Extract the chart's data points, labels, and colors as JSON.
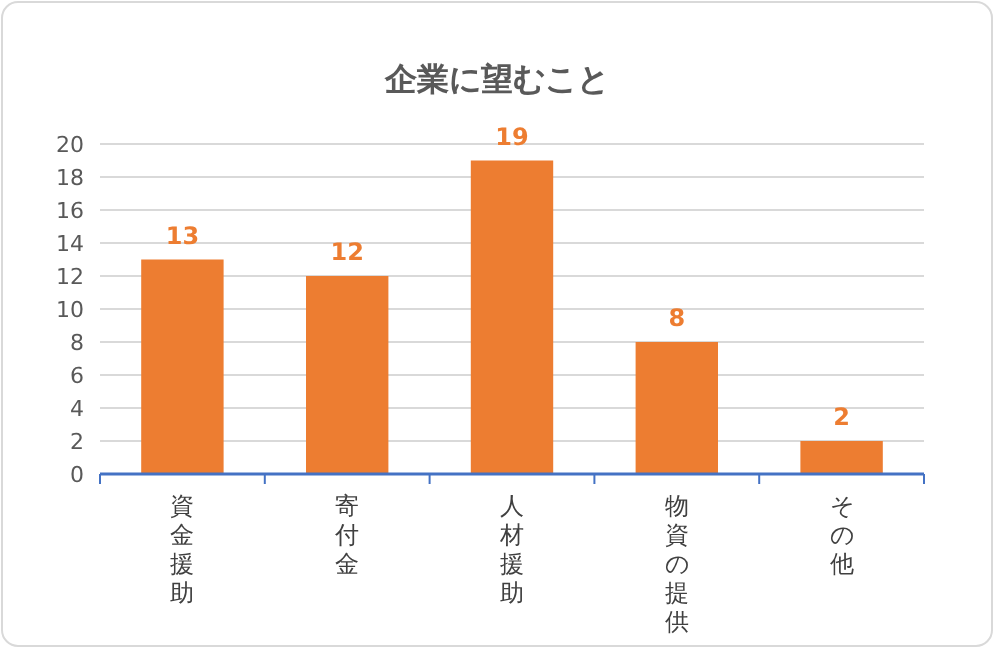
{
  "chart_data": {
    "type": "bar",
    "title": "企業に望むこと",
    "categories": [
      "資金援助",
      "寄付金",
      "人材援助",
      "物資の提供",
      "その他"
    ],
    "values": [
      13,
      12,
      19,
      8,
      2
    ],
    "color": "#ed7d31",
    "ylim": [
      0,
      20
    ],
    "yticks": [
      0,
      2,
      4,
      6,
      8,
      10,
      12,
      14,
      16,
      18,
      20
    ],
    "grid": "y",
    "data_labels": true
  }
}
